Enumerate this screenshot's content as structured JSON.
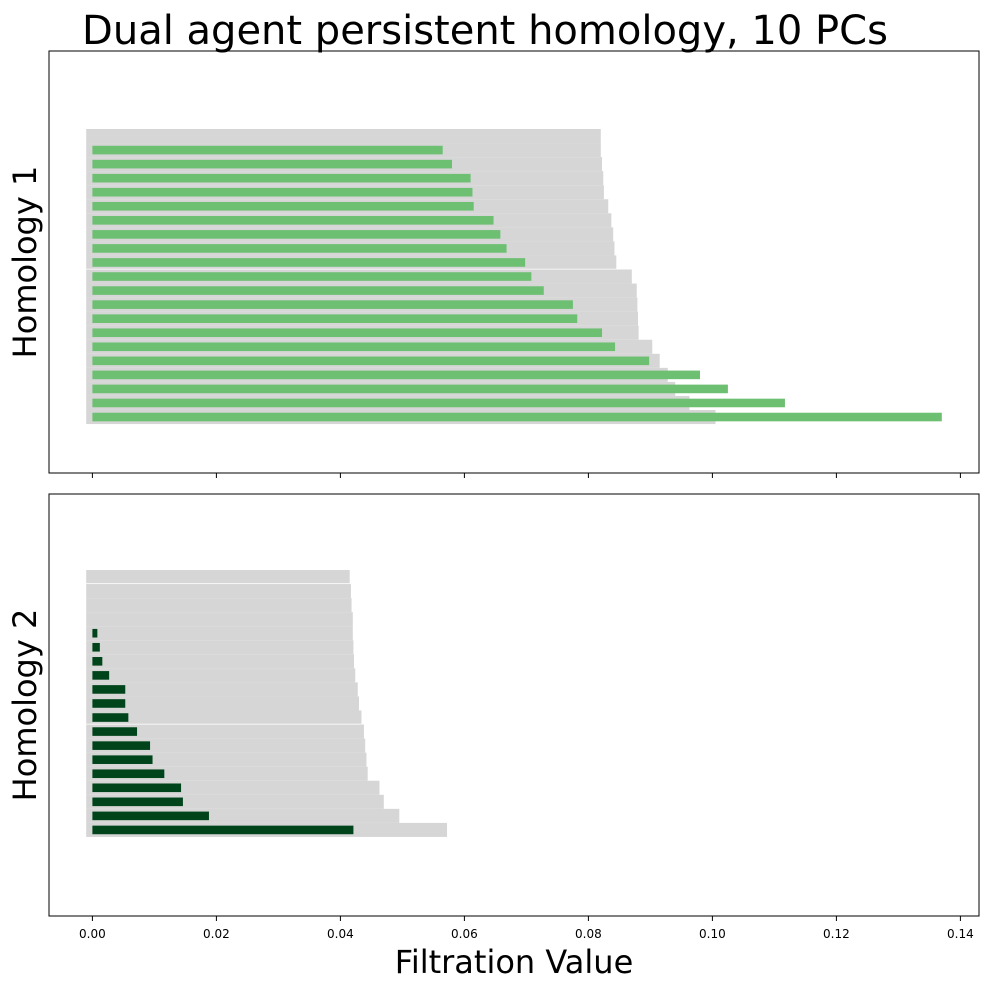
{
  "title": "Dual agent persistent homology, 10 PCs",
  "xlabel": "Filtration Value",
  "colors": {
    "bar_band": "#d6d6d6",
    "homology1": "#6dbf72",
    "homology2": "#00441b",
    "frame": "#000000"
  },
  "chart_data": {
    "type": "bar",
    "orientation": "horizontal",
    "xlim": [
      -0.007,
      0.143
    ],
    "x_ticks": [
      0.0,
      0.02,
      0.04,
      0.06,
      0.08,
      0.1,
      0.12,
      0.14
    ],
    "x_tick_labels": [
      "0.00",
      "0.02",
      "0.04",
      "0.06",
      "0.08",
      "0.10",
      "0.12",
      "0.14"
    ],
    "grid": false,
    "panels": [
      {
        "ylabel": "Homology 1",
        "band_start": -0.001,
        "band_groups": [
          {
            "ends": [
              0.082,
              0.082,
              0.0822,
              0.0824,
              0.0825,
              0.0832,
              0.0837,
              0.084,
              0.0842,
              0.0845
            ]
          },
          {
            "ends": [
              0.087,
              0.0878,
              0.0879,
              0.088,
              0.0881,
              0.0903,
              0.0915,
              0.0928,
              0.094,
              0.0963,
              0.1005
            ]
          }
        ],
        "bars": [
          0.0565,
          0.058,
          0.061,
          0.0613,
          0.0615,
          0.0647,
          0.0658,
          0.0668,
          0.0698,
          0.0708,
          0.0728,
          0.0775,
          0.0782,
          0.0822,
          0.0843,
          0.0898,
          0.098,
          0.1025,
          0.1117,
          0.137
        ]
      },
      {
        "ylabel": "Homology 2",
        "band_start": -0.001,
        "band_groups": [
          {
            "ends": [
              0.0415
            ]
          },
          {
            "ends": [
              0.0417,
              0.0418,
              0.042,
              0.042,
              0.0421,
              0.0422,
              0.0424,
              0.0428,
              0.043,
              0.0434
            ]
          },
          {
            "ends": [
              0.0438,
              0.044,
              0.0442,
              0.0444,
              0.0463,
              0.047,
              0.0495,
              0.0572
            ]
          }
        ],
        "bars": [
          0.0008,
          0.0012,
          0.0016,
          0.0027,
          0.0053,
          0.0053,
          0.0058,
          0.0072,
          0.0093,
          0.0097,
          0.0116,
          0.0143,
          0.0146,
          0.0188,
          0.0421
        ]
      }
    ]
  }
}
